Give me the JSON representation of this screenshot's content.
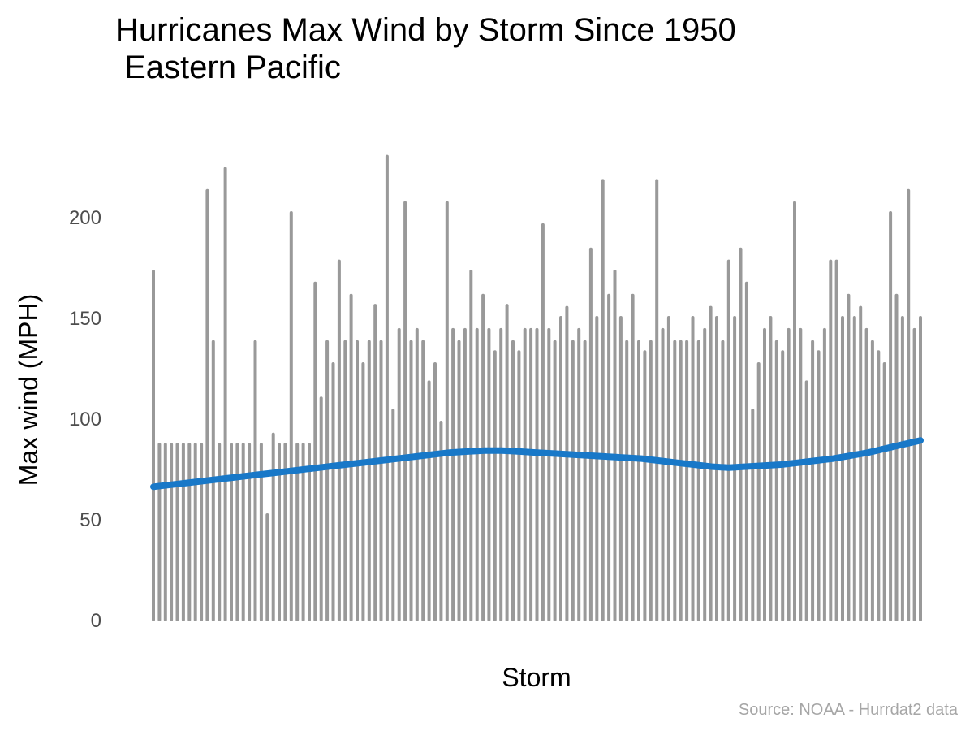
{
  "chart_data": {
    "type": "bar",
    "title": "Hurricanes Max Wind by Storm Since 1950\n Eastern Pacific",
    "xlabel": "Storm",
    "ylabel": "Max wind (MPH)",
    "caption": "Source: NOAA - Hurrdat2 data",
    "ylim": [
      0,
      232
    ],
    "yticks": [
      0,
      50,
      100,
      150,
      200
    ],
    "grid": false,
    "legend": "none",
    "colors": {
      "bars": "#999999",
      "trend": "#1878c8"
    },
    "values": [
      173,
      87,
      87,
      87,
      87,
      87,
      87,
      87,
      87,
      213,
      138,
      87,
      224,
      87,
      87,
      87,
      87,
      138,
      87,
      52,
      92,
      87,
      87,
      202,
      87,
      87,
      87,
      167,
      110,
      138,
      127,
      178,
      138,
      161,
      138,
      127,
      138,
      156,
      138,
      230,
      104,
      144,
      207,
      138,
      144,
      138,
      118,
      127,
      98,
      207,
      144,
      138,
      144,
      173,
      144,
      161,
      144,
      133,
      144,
      156,
      138,
      133,
      144,
      144,
      144,
      196,
      144,
      138,
      150,
      155,
      138,
      144,
      138,
      184,
      150,
      218,
      161,
      173,
      150,
      138,
      161,
      138,
      133,
      138,
      218,
      144,
      150,
      138,
      138,
      138,
      150,
      138,
      144,
      155,
      150,
      138,
      178,
      150,
      184,
      167,
      104,
      127,
      144,
      150,
      138,
      133,
      144,
      207,
      144,
      118,
      138,
      133,
      144,
      178,
      178,
      150,
      161,
      150,
      155,
      144,
      138,
      133,
      127,
      202,
      161,
      150,
      213,
      144,
      150
    ],
    "trend": [
      66,
      67,
      68,
      69,
      70,
      71,
      72,
      73,
      74,
      75,
      76,
      77,
      78,
      79,
      80,
      81,
      82,
      83,
      83.5,
      84,
      84,
      83.5,
      83,
      82.5,
      82,
      81.5,
      81,
      80.5,
      80,
      79,
      78,
      77,
      76,
      75.5,
      76,
      76.5,
      77,
      78,
      79,
      80,
      81.5,
      83,
      85,
      87,
      89
    ]
  }
}
